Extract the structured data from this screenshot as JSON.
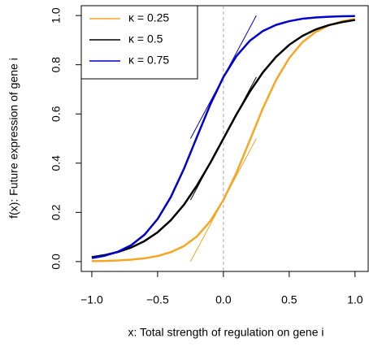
{
  "chart_data": {
    "type": "line",
    "xlabel": "x: Total strength of regulation on gene i",
    "ylabel": "f(x): Future expression of gene i",
    "x": [
      -1,
      -0.9,
      -0.8,
      -0.7,
      -0.6,
      -0.5,
      -0.4,
      -0.3,
      -0.2,
      -0.1,
      0,
      0.1,
      0.2,
      0.3,
      0.4,
      0.5,
      0.6,
      0.7,
      0.8,
      0.9,
      1
    ],
    "series": [
      {
        "name": "κ = 0.25",
        "color": "#f5a623",
        "values": [
          0.0016,
          0.0027,
          0.0047,
          0.0079,
          0.0134,
          0.0226,
          0.038,
          0.063,
          0.103,
          0.164,
          0.25,
          0.362,
          0.492,
          0.623,
          0.738,
          0.827,
          0.891,
          0.933,
          0.96,
          0.976,
          0.986
        ],
        "tangent": {
          "x": [
            -0.25,
            0.25
          ],
          "y": [
            0,
            0.5
          ]
        }
      },
      {
        "name": "κ = 0.5",
        "color": "#000000",
        "values": [
          0.018,
          0.0266,
          0.0392,
          0.0573,
          0.0832,
          0.119,
          0.168,
          0.231,
          0.31,
          0.401,
          0.5,
          0.599,
          0.69,
          0.769,
          0.832,
          0.881,
          0.917,
          0.943,
          0.961,
          0.973,
          0.982
        ],
        "tangent": {
          "x": [
            -0.25,
            0.25
          ],
          "y": [
            0.25,
            0.75
          ]
        }
      },
      {
        "name": "κ = 0.75",
        "color": "#0000cc",
        "values": [
          0.0144,
          0.0241,
          0.0404,
          0.067,
          0.109,
          0.173,
          0.262,
          0.377,
          0.508,
          0.638,
          0.75,
          0.836,
          0.897,
          0.937,
          0.962,
          0.977,
          0.987,
          0.992,
          0.995,
          0.997,
          0.998
        ],
        "tangent": {
          "x": [
            -0.25,
            0.25
          ],
          "y": [
            0.5,
            1.0
          ]
        }
      }
    ],
    "vline": 0,
    "xlim": [
      -1.08,
      1.1
    ],
    "ylim": [
      -0.04,
      1.04
    ],
    "xticks": [
      {
        "value": -1,
        "label": "−1.0"
      },
      {
        "value": -0.5,
        "label": "−0.5"
      },
      {
        "value": 0,
        "label": "0.0"
      },
      0.5,
      {
        "value": 1,
        "label": "1.0"
      }
    ],
    "yticks": [
      {
        "value": 0,
        "label": "0.0"
      },
      0.2,
      0.4,
      0.6,
      0.8,
      {
        "value": 1,
        "label": "1.0"
      }
    ],
    "legend": "top-left"
  }
}
